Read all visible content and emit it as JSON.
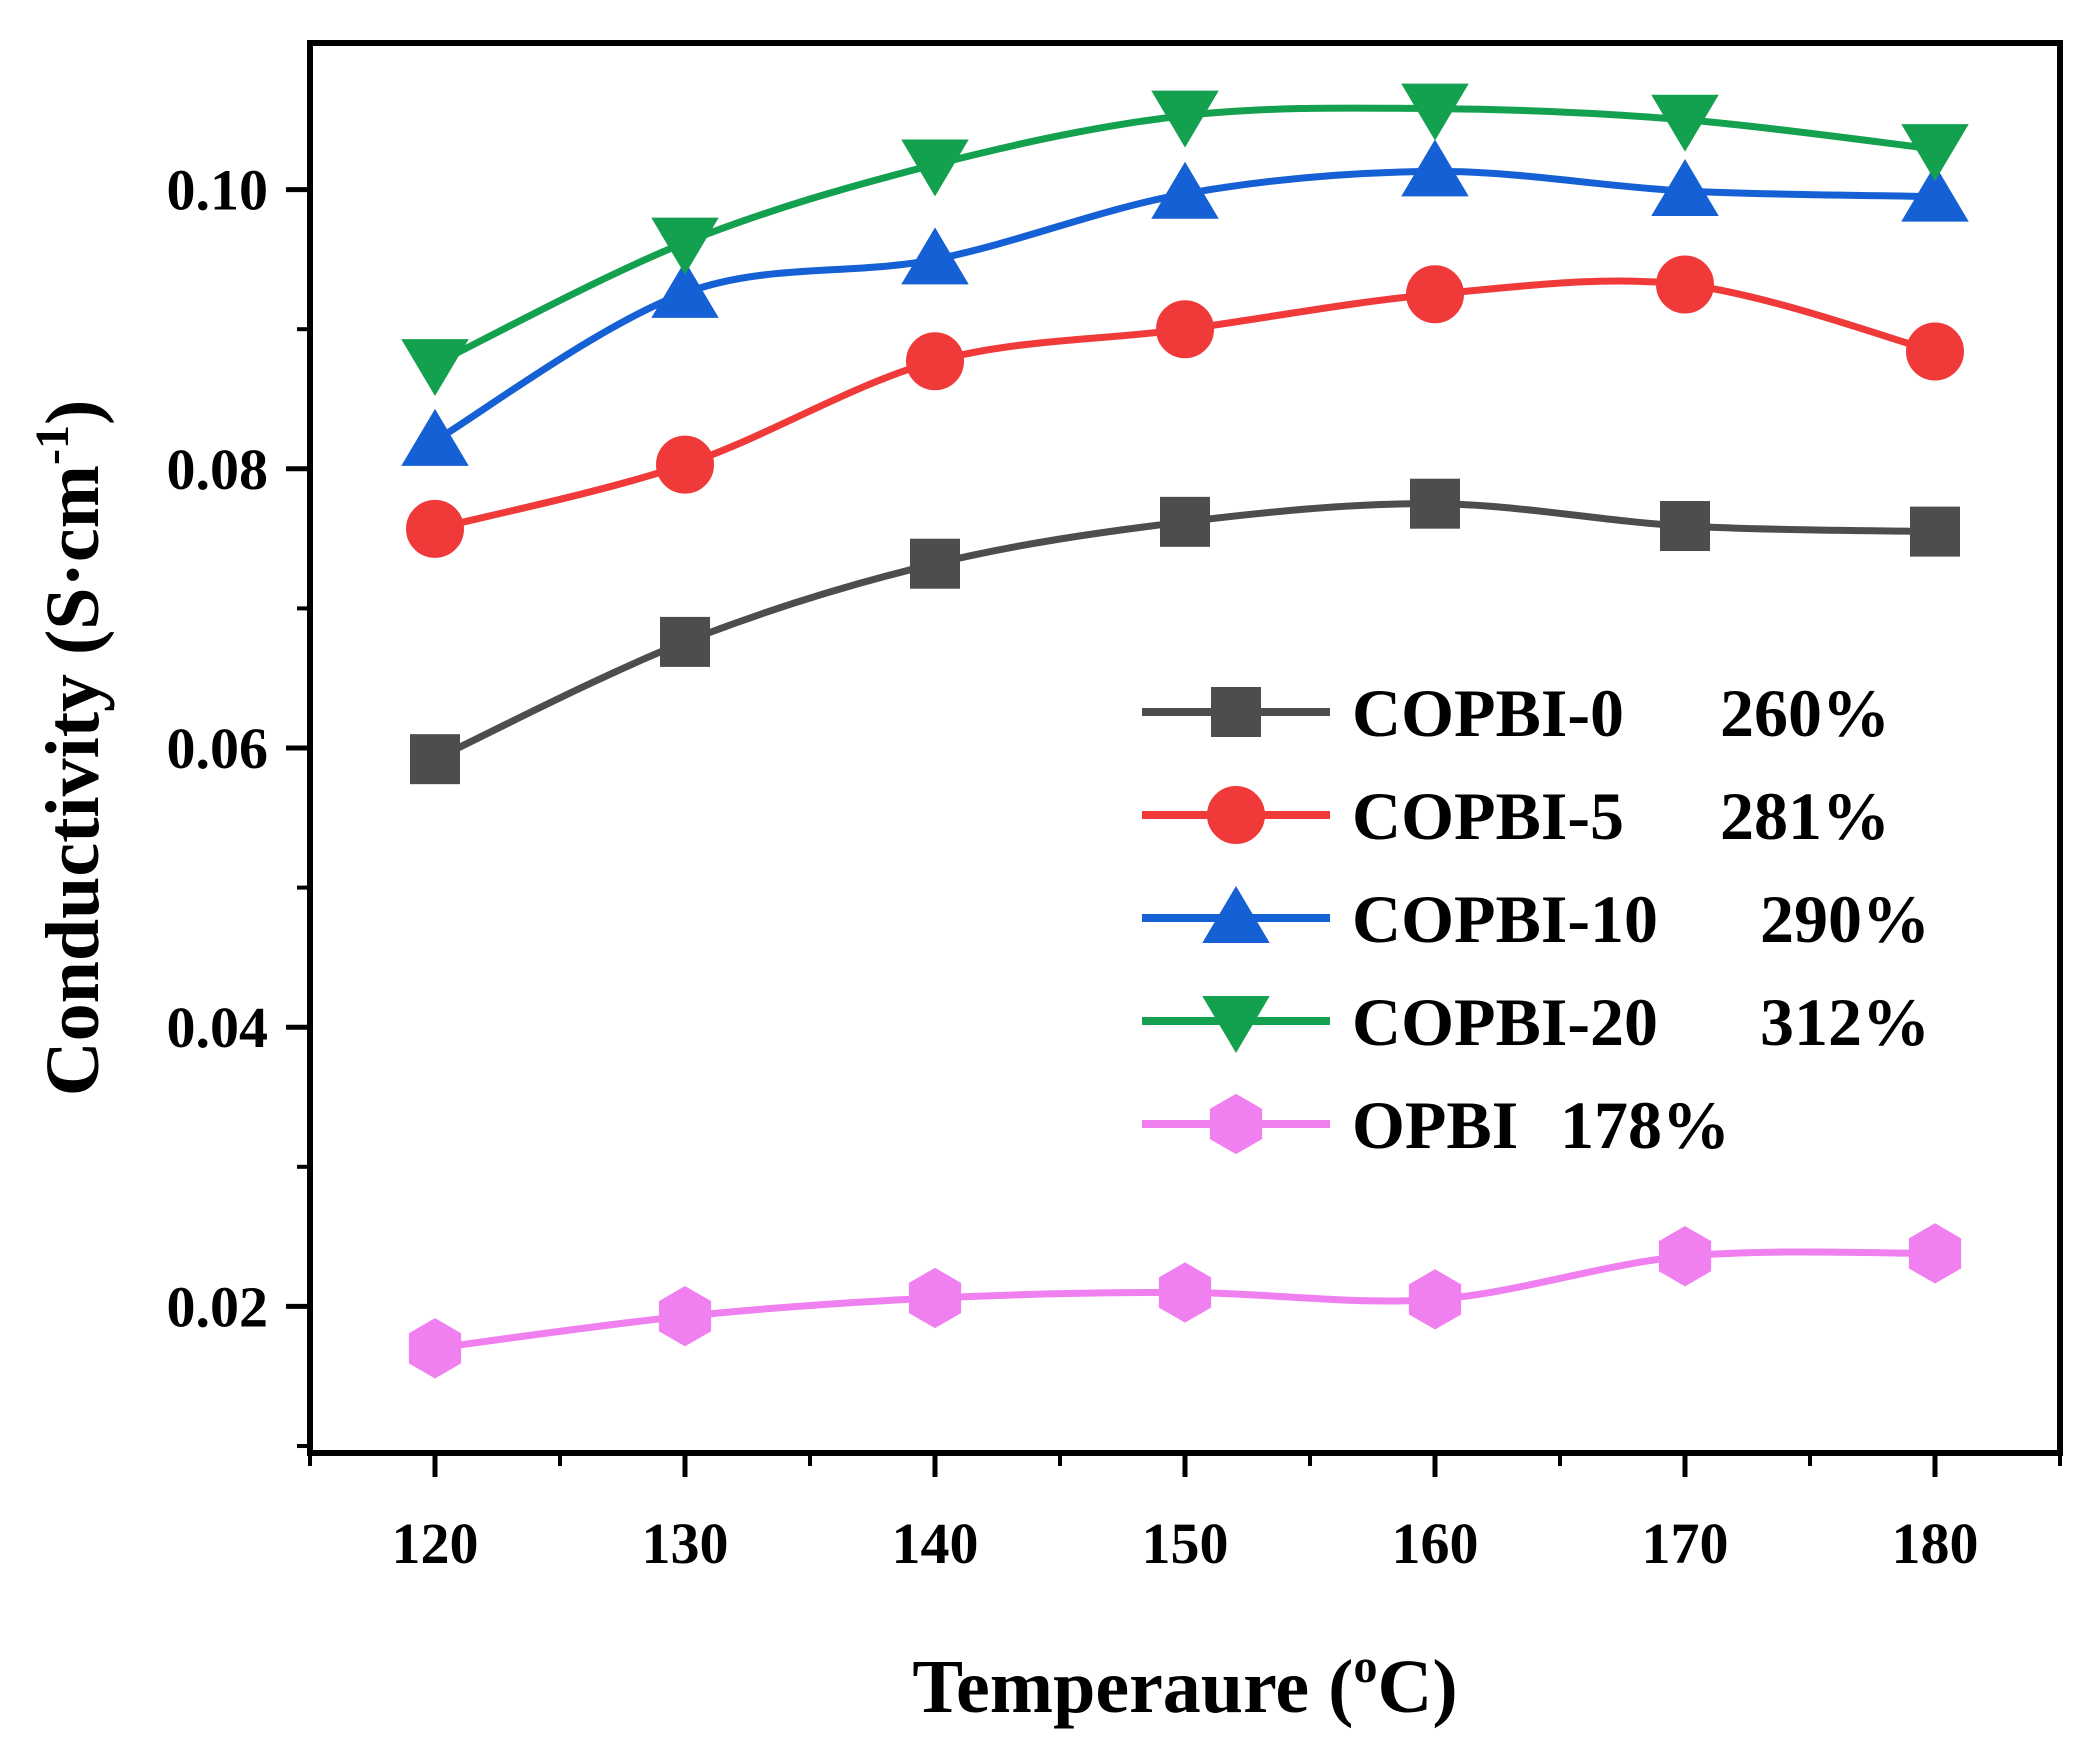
{
  "chart_data": {
    "type": "line",
    "xlabel": "Temperaure (",
    "xlabel_sup": "o",
    "xlabel_tail": "C)",
    "ylabel": "Conductivity (S·cm",
    "ylabel_sup": "-1",
    "ylabel_tail": ")",
    "x": [
      120,
      130,
      140,
      150,
      160,
      170,
      180
    ],
    "xlim": [
      115,
      185
    ],
    "ylim": [
      0.0095,
      0.1105
    ],
    "xticks": [
      120,
      130,
      140,
      150,
      160,
      170,
      180
    ],
    "yticks": [
      0.02,
      0.04,
      0.06,
      0.08,
      0.1
    ],
    "ytick_labels": [
      "0.02",
      "0.04",
      "0.06",
      "0.08",
      "0.10"
    ],
    "grid": false,
    "legend_position": "right",
    "series": [
      {
        "name": "COPBI-0",
        "extra": "260%",
        "color": "#4d4d4d",
        "marker": "square",
        "values": [
          0.0592,
          0.0676,
          0.0732,
          0.0762,
          0.0775,
          0.0759,
          0.0755
        ]
      },
      {
        "name": "COPBI-5",
        "extra": "281%",
        "color": "#f03a3a",
        "marker": "circle",
        "values": [
          0.0757,
          0.0803,
          0.0877,
          0.09,
          0.0925,
          0.0932,
          0.0884
        ]
      },
      {
        "name": "COPBI-10",
        "extra": "290%",
        "color": "#1560d4",
        "marker": "triangle-up",
        "values": [
          0.082,
          0.0926,
          0.095,
          0.0997,
          0.1013,
          0.0999,
          0.0995
        ]
      },
      {
        "name": "COPBI-20",
        "extra": "312%",
        "color": "#13a14f",
        "marker": "triangle-down",
        "values": [
          0.0875,
          0.0962,
          0.1018,
          0.1053,
          0.1058,
          0.105,
          0.1029
        ]
      },
      {
        "name": "OPBI",
        "extra": "178%",
        "color": "#f07ff0",
        "marker": "hexagon",
        "values": [
          0.017,
          0.0193,
          0.0206,
          0.021,
          0.0205,
          0.0236,
          0.0238
        ]
      }
    ]
  }
}
